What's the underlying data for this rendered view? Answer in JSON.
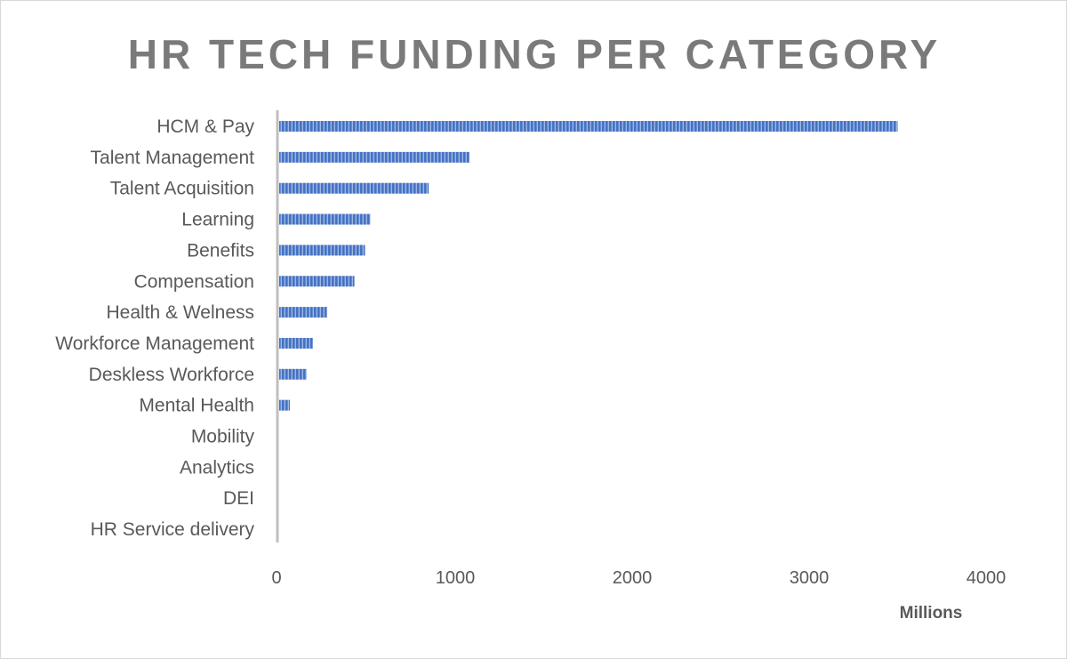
{
  "chart_data": {
    "type": "bar",
    "orientation": "horizontal",
    "title": "HR TECH FUNDING PER CATEGORY",
    "xlabel": "Millions",
    "ylabel": "",
    "categories": [
      "HCM & Pay",
      "Talent Management",
      "Talent Acquisition",
      "Learning",
      "Benefits",
      "Compensation",
      "Health & Welness",
      "Workforce Management",
      "Deskless Workforce",
      "Mental Health",
      "Mobility",
      "Analytics",
      "DEI",
      "HR Service delivery"
    ],
    "values": [
      3500,
      1080,
      850,
      520,
      490,
      430,
      275,
      195,
      160,
      65,
      0,
      0,
      0,
      0
    ],
    "xlim": [
      0,
      4000
    ],
    "xticks": [
      "0",
      "1000",
      "2000",
      "3000",
      "4000"
    ],
    "grid": false,
    "legend": "none",
    "colors": {
      "bar": "#4472c4",
      "bar_stripe": "#8faadc",
      "axis": "#bfbfbf",
      "title": "#7a7a7a"
    }
  }
}
